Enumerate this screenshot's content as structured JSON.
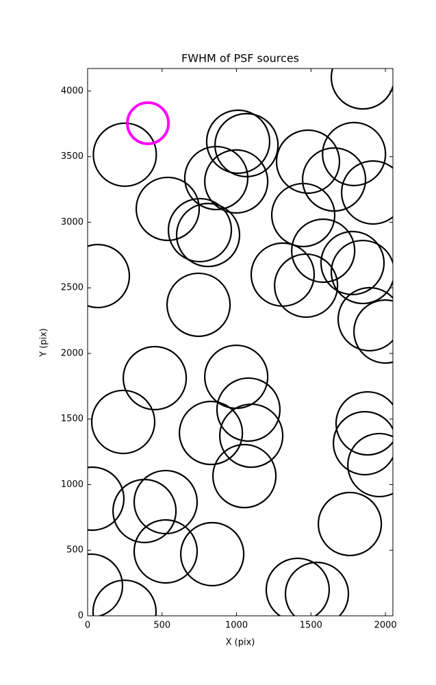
{
  "chart_data": {
    "type": "scatter",
    "title": "FWHM of PSF sources",
    "x_label": "X (pix)",
    "y_label": "Y (pix)",
    "xlim": [
      0,
      2050
    ],
    "ylim": [
      0,
      4172
    ],
    "xticks": [
      0,
      500,
      1000,
      1500,
      2000
    ],
    "yticks": [
      0,
      500,
      1000,
      1500,
      2000,
      2500,
      3000,
      3500,
      4000
    ],
    "series": [
      {
        "color": "#000000",
        "x": [
          250,
          538,
          69,
          745,
          1011,
          1067,
          864,
          998,
          754,
          809,
          1480,
          1789,
          1655,
          1917,
          1448,
          1582,
          1310,
          1467,
          1779,
          1848,
          1894,
          2000,
          451,
          998,
          239,
          1080,
          828,
          1099,
          1053,
          1880,
          1862,
          1959,
          32,
          524,
          382,
          524,
          837,
          1761,
          23,
          248,
          1411,
          1540,
          1848
        ],
        "values": [
          3515,
          3102,
          2590,
          2371,
          3614,
          3588,
          3337,
          3311,
          2940,
          2903,
          3462,
          3520,
          3326,
          3227,
          3055,
          2783,
          2601,
          2517,
          2689,
          2621,
          2261,
          2167,
          1812,
          1822,
          1478,
          1572,
          1394,
          1373,
          1065,
          1467,
          1316,
          1149,
          893,
          867,
          799,
          491,
          470,
          700,
          230,
          31,
          198,
          167,
          4104
        ]
      },
      {
        "color": "#ff00ff",
        "x": [
          405
        ],
        "values": [
          3755
        ]
      }
    ]
  }
}
